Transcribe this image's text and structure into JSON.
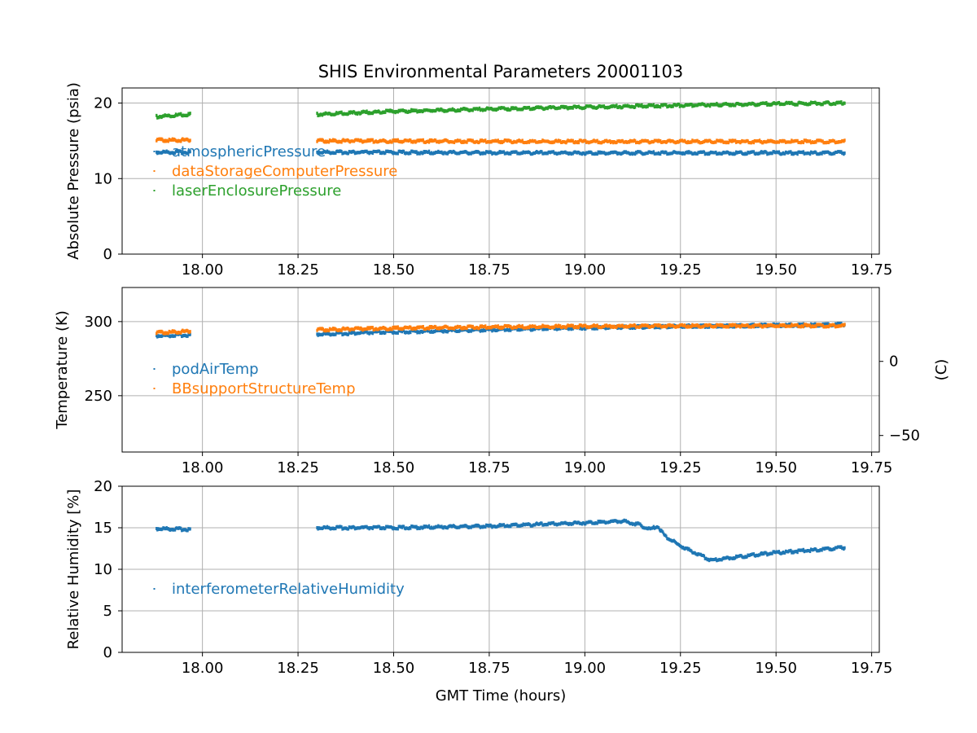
{
  "title": "SHIS Environmental Parameters 20001103",
  "xlabel": "GMT Time (hours)",
  "colors": {
    "blue": "#1f77b4",
    "orange": "#ff7f0e",
    "green": "#2ca02c",
    "grid": "#b0b0b0"
  },
  "chart_data": [
    {
      "type": "scatter",
      "ylabel": "Absolute Pressure (psia)",
      "xlim": [
        17.79,
        19.77
      ],
      "ylim": [
        0,
        22
      ],
      "xticks": [
        18.0,
        18.25,
        18.5,
        18.75,
        19.0,
        19.25,
        19.5,
        19.75
      ],
      "xtick_labels": [
        "18.00",
        "18.25",
        "18.50",
        "18.75",
        "19.00",
        "19.25",
        "19.50",
        "19.75"
      ],
      "yticks": [
        0,
        10,
        20
      ],
      "ytick_labels": [
        "0",
        "10",
        "20"
      ],
      "grid": true,
      "legend_position": "lower-left",
      "series": [
        {
          "name": "atmosphericPressure",
          "color": "#1f77b4",
          "segments": [
            {
              "x": [
                17.88,
                17.97
              ],
              "y": [
                13.5,
                13.5
              ]
            },
            {
              "x": [
                18.3,
                18.6,
                19.0,
                19.68
              ],
              "y": [
                13.5,
                13.45,
                13.4,
                13.4
              ]
            }
          ]
        },
        {
          "name": "dataStorageComputerPressure",
          "color": "#ff7f0e",
          "segments": [
            {
              "x": [
                17.88,
                17.97
              ],
              "y": [
                15.1,
                15.1
              ]
            },
            {
              "x": [
                18.3,
                18.6,
                19.0,
                19.68
              ],
              "y": [
                15.0,
                14.95,
                14.9,
                14.9
              ]
            }
          ]
        },
        {
          "name": "laserEnclosurePressure",
          "color": "#2ca02c",
          "segments": [
            {
              "x": [
                17.88,
                17.97
              ],
              "y": [
                18.2,
                18.5
              ]
            },
            {
              "x": [
                18.3,
                18.5,
                18.75,
                19.0,
                19.25,
                19.5,
                19.68
              ],
              "y": [
                18.5,
                18.9,
                19.2,
                19.45,
                19.7,
                19.9,
                20.0
              ]
            }
          ]
        }
      ]
    },
    {
      "type": "scatter",
      "ylabel": "Temperature (K)",
      "ylabel_right": "(C)",
      "xlim": [
        17.79,
        19.77
      ],
      "ylim": [
        212,
        323
      ],
      "xticks": [
        18.0,
        18.25,
        18.5,
        18.75,
        19.0,
        19.25,
        19.5,
        19.75
      ],
      "xtick_labels": [
        "18.00",
        "18.25",
        "18.50",
        "18.75",
        "19.00",
        "19.25",
        "19.50",
        "19.75"
      ],
      "yticks": [
        250,
        300
      ],
      "ytick_labels": [
        "250",
        "300"
      ],
      "yticks_right": [
        0,
        -50
      ],
      "ytick_labels_right": [
        "0",
        "−50"
      ],
      "grid": true,
      "legend_position": "lower-left",
      "series": [
        {
          "name": "podAirTemp",
          "color": "#1f77b4",
          "segments": [
            {
              "x": [
                17.88,
                17.97
              ],
              "y": [
                290.5,
                291.0
              ]
            },
            {
              "x": [
                18.3,
                18.5,
                18.75,
                19.0,
                19.25,
                19.5,
                19.68
              ],
              "y": [
                291.5,
                293.0,
                294.5,
                295.8,
                296.8,
                297.5,
                298.0
              ]
            }
          ]
        },
        {
          "name": "BBsupportStructureTemp",
          "color": "#ff7f0e",
          "segments": [
            {
              "x": [
                17.88,
                17.97
              ],
              "y": [
                292.5,
                293.5
              ]
            },
            {
              "x": [
                18.3,
                18.5,
                18.75,
                19.0,
                19.25,
                19.5,
                19.68
              ],
              "y": [
                294.5,
                295.5,
                296.3,
                296.8,
                297.0,
                297.2,
                297.2
              ]
            }
          ]
        }
      ]
    },
    {
      "type": "scatter",
      "ylabel": "Relative Humidity [%]",
      "xlim": [
        17.79,
        19.77
      ],
      "ylim": [
        0,
        20
      ],
      "xticks": [
        18.0,
        18.25,
        18.5,
        18.75,
        19.0,
        19.25,
        19.5,
        19.75
      ],
      "xtick_labels": [
        "18.00",
        "18.25",
        "18.50",
        "18.75",
        "19.00",
        "19.25",
        "19.50",
        "19.75"
      ],
      "yticks": [
        0,
        5,
        10,
        15,
        20
      ],
      "ytick_labels": [
        "0",
        "5",
        "10",
        "15",
        "20"
      ],
      "grid": true,
      "legend_position": "lower-left",
      "series": [
        {
          "name": "interferometerRelativeHumidity",
          "color": "#1f77b4",
          "segments": [
            {
              "x": [
                17.88,
                17.97
              ],
              "y": [
                14.9,
                14.8
              ]
            },
            {
              "x": [
                18.3,
                18.5,
                18.75,
                19.0,
                19.1,
                19.14,
                19.17,
                19.19,
                19.21,
                19.25,
                19.33,
                19.4,
                19.5,
                19.68
              ],
              "y": [
                15.0,
                15.0,
                15.2,
                15.6,
                15.8,
                15.4,
                14.8,
                15.2,
                14.0,
                12.8,
                11.1,
                11.5,
                12.0,
                12.6
              ]
            }
          ]
        }
      ]
    }
  ]
}
